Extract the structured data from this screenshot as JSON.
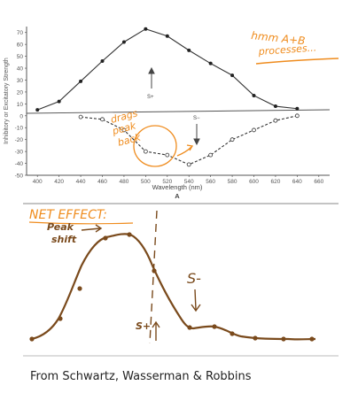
{
  "chart_data": {
    "type": "line",
    "xlabel": "Wavelength (nm)",
    "ylabel": "Inhibitory or Excitatory Strength",
    "panel_label": "A",
    "xlim": [
      390,
      670
    ],
    "ylim": [
      -50,
      75
    ],
    "x_ticks": [
      400,
      420,
      440,
      460,
      480,
      500,
      520,
      540,
      560,
      580,
      600,
      620,
      640,
      660
    ],
    "y_ticks": [
      70,
      60,
      50,
      40,
      30,
      20,
      10,
      0,
      -10,
      -20,
      -30,
      -40,
      -50
    ],
    "series": [
      {
        "name": "S+",
        "style": "solid",
        "marker": "filled",
        "x": [
          400,
          420,
          440,
          460,
          480,
          500,
          520,
          540,
          560,
          580,
          600,
          620,
          640
        ],
        "values": [
          5,
          12,
          29,
          46,
          62,
          73,
          67,
          55,
          44,
          34,
          17,
          8,
          6
        ]
      },
      {
        "name": "S−",
        "style": "dashed",
        "marker": "open",
        "x": [
          440,
          460,
          480,
          500,
          520,
          540,
          560,
          580,
          600,
          620,
          640
        ],
        "values": [
          -1,
          -3,
          -12,
          -30,
          -33,
          -41,
          -33,
          -20,
          -12,
          -4,
          0
        ]
      }
    ]
  },
  "annotations": {
    "hmm": "hmm A+B",
    "processes": "processes...",
    "drags_1": "drags",
    "drags_2": "peak",
    "drags_3": "back",
    "net_effect": "NET EFFECT:",
    "peak_shift_1": "Peak",
    "peak_shift_2": "shift",
    "s_minus": "S-",
    "s_plus": "S+"
  },
  "net_effect_curve": {
    "description_points": [
      [
        10,
        0
      ],
      [
        40,
        4
      ],
      [
        80,
        26
      ],
      [
        115,
        34
      ],
      [
        150,
        40
      ],
      [
        190,
        36
      ],
      [
        230,
        20
      ],
      [
        268,
        9
      ],
      [
        300,
        8
      ],
      [
        335,
        3
      ],
      [
        370,
        2
      ],
      [
        420,
        1
      ],
      [
        460,
        1
      ]
    ]
  },
  "colors": {
    "ink": "#444444",
    "handwriting": "#ef8c1e",
    "brown": "#7a4a1c"
  },
  "caption": "From Schwartz, Wasserman & Robbins"
}
